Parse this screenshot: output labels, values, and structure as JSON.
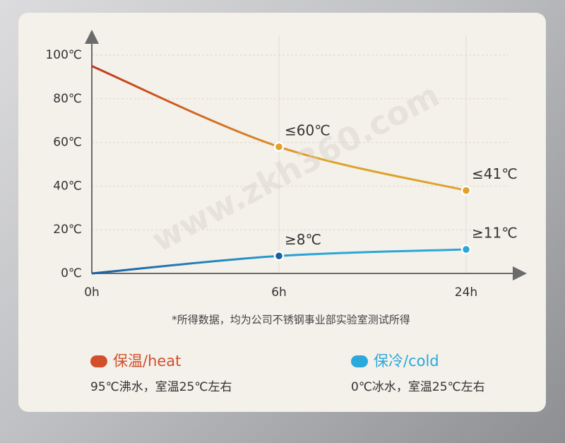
{
  "chart_data": {
    "type": "line",
    "categories": [
      "0h",
      "6h",
      "24h"
    ],
    "ylim": [
      0,
      100
    ],
    "yticks": [
      {
        "value": 0,
        "label": "0℃"
      },
      {
        "value": 20,
        "label": "20℃"
      },
      {
        "value": 40,
        "label": "40℃"
      },
      {
        "value": 60,
        "label": "60℃"
      },
      {
        "value": 80,
        "label": "80℃"
      },
      {
        "value": 100,
        "label": "100℃"
      }
    ],
    "grid": true,
    "series": [
      {
        "name": "保温/heat",
        "note": "95℃沸水，室温25℃左右",
        "color": "#dfa22b",
        "start_color": "#c0381e",
        "marker_color": "#d24f2c",
        "values": [
          95,
          58,
          38
        ],
        "point_labels": [
          null,
          "≤60℃",
          "≤41℃"
        ]
      },
      {
        "name": "保冷/cold",
        "note": "0℃冰水，室温25℃左右",
        "color": "#2aa7d8",
        "start_color": "#1c5f9e",
        "marker_color": "#2aa9da",
        "values": [
          0,
          8,
          11
        ],
        "point_labels": [
          null,
          "≥8℃",
          "≥11℃"
        ]
      }
    ],
    "footnote": "*所得数据，均为公司不锈钢事业部实验室测试所得",
    "watermark": "www.zkh360.com"
  }
}
